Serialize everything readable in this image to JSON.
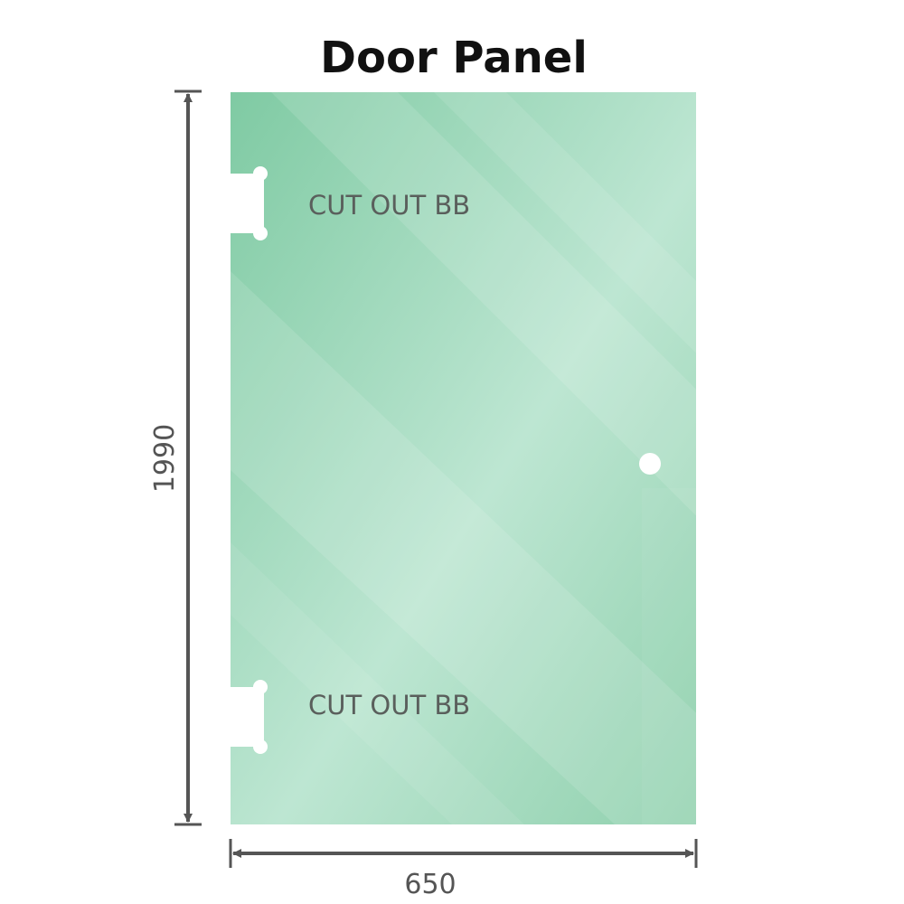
{
  "title": "Door Panel",
  "dimensions": {
    "height": "1990",
    "width": "650"
  },
  "cutouts": [
    {
      "label": "CUT OUT BB"
    },
    {
      "label": "CUT OUT BB"
    }
  ],
  "colors": {
    "glass": "#86cda8",
    "glass_highlight": "#c2e8d6",
    "dimension_line": "#555555"
  }
}
